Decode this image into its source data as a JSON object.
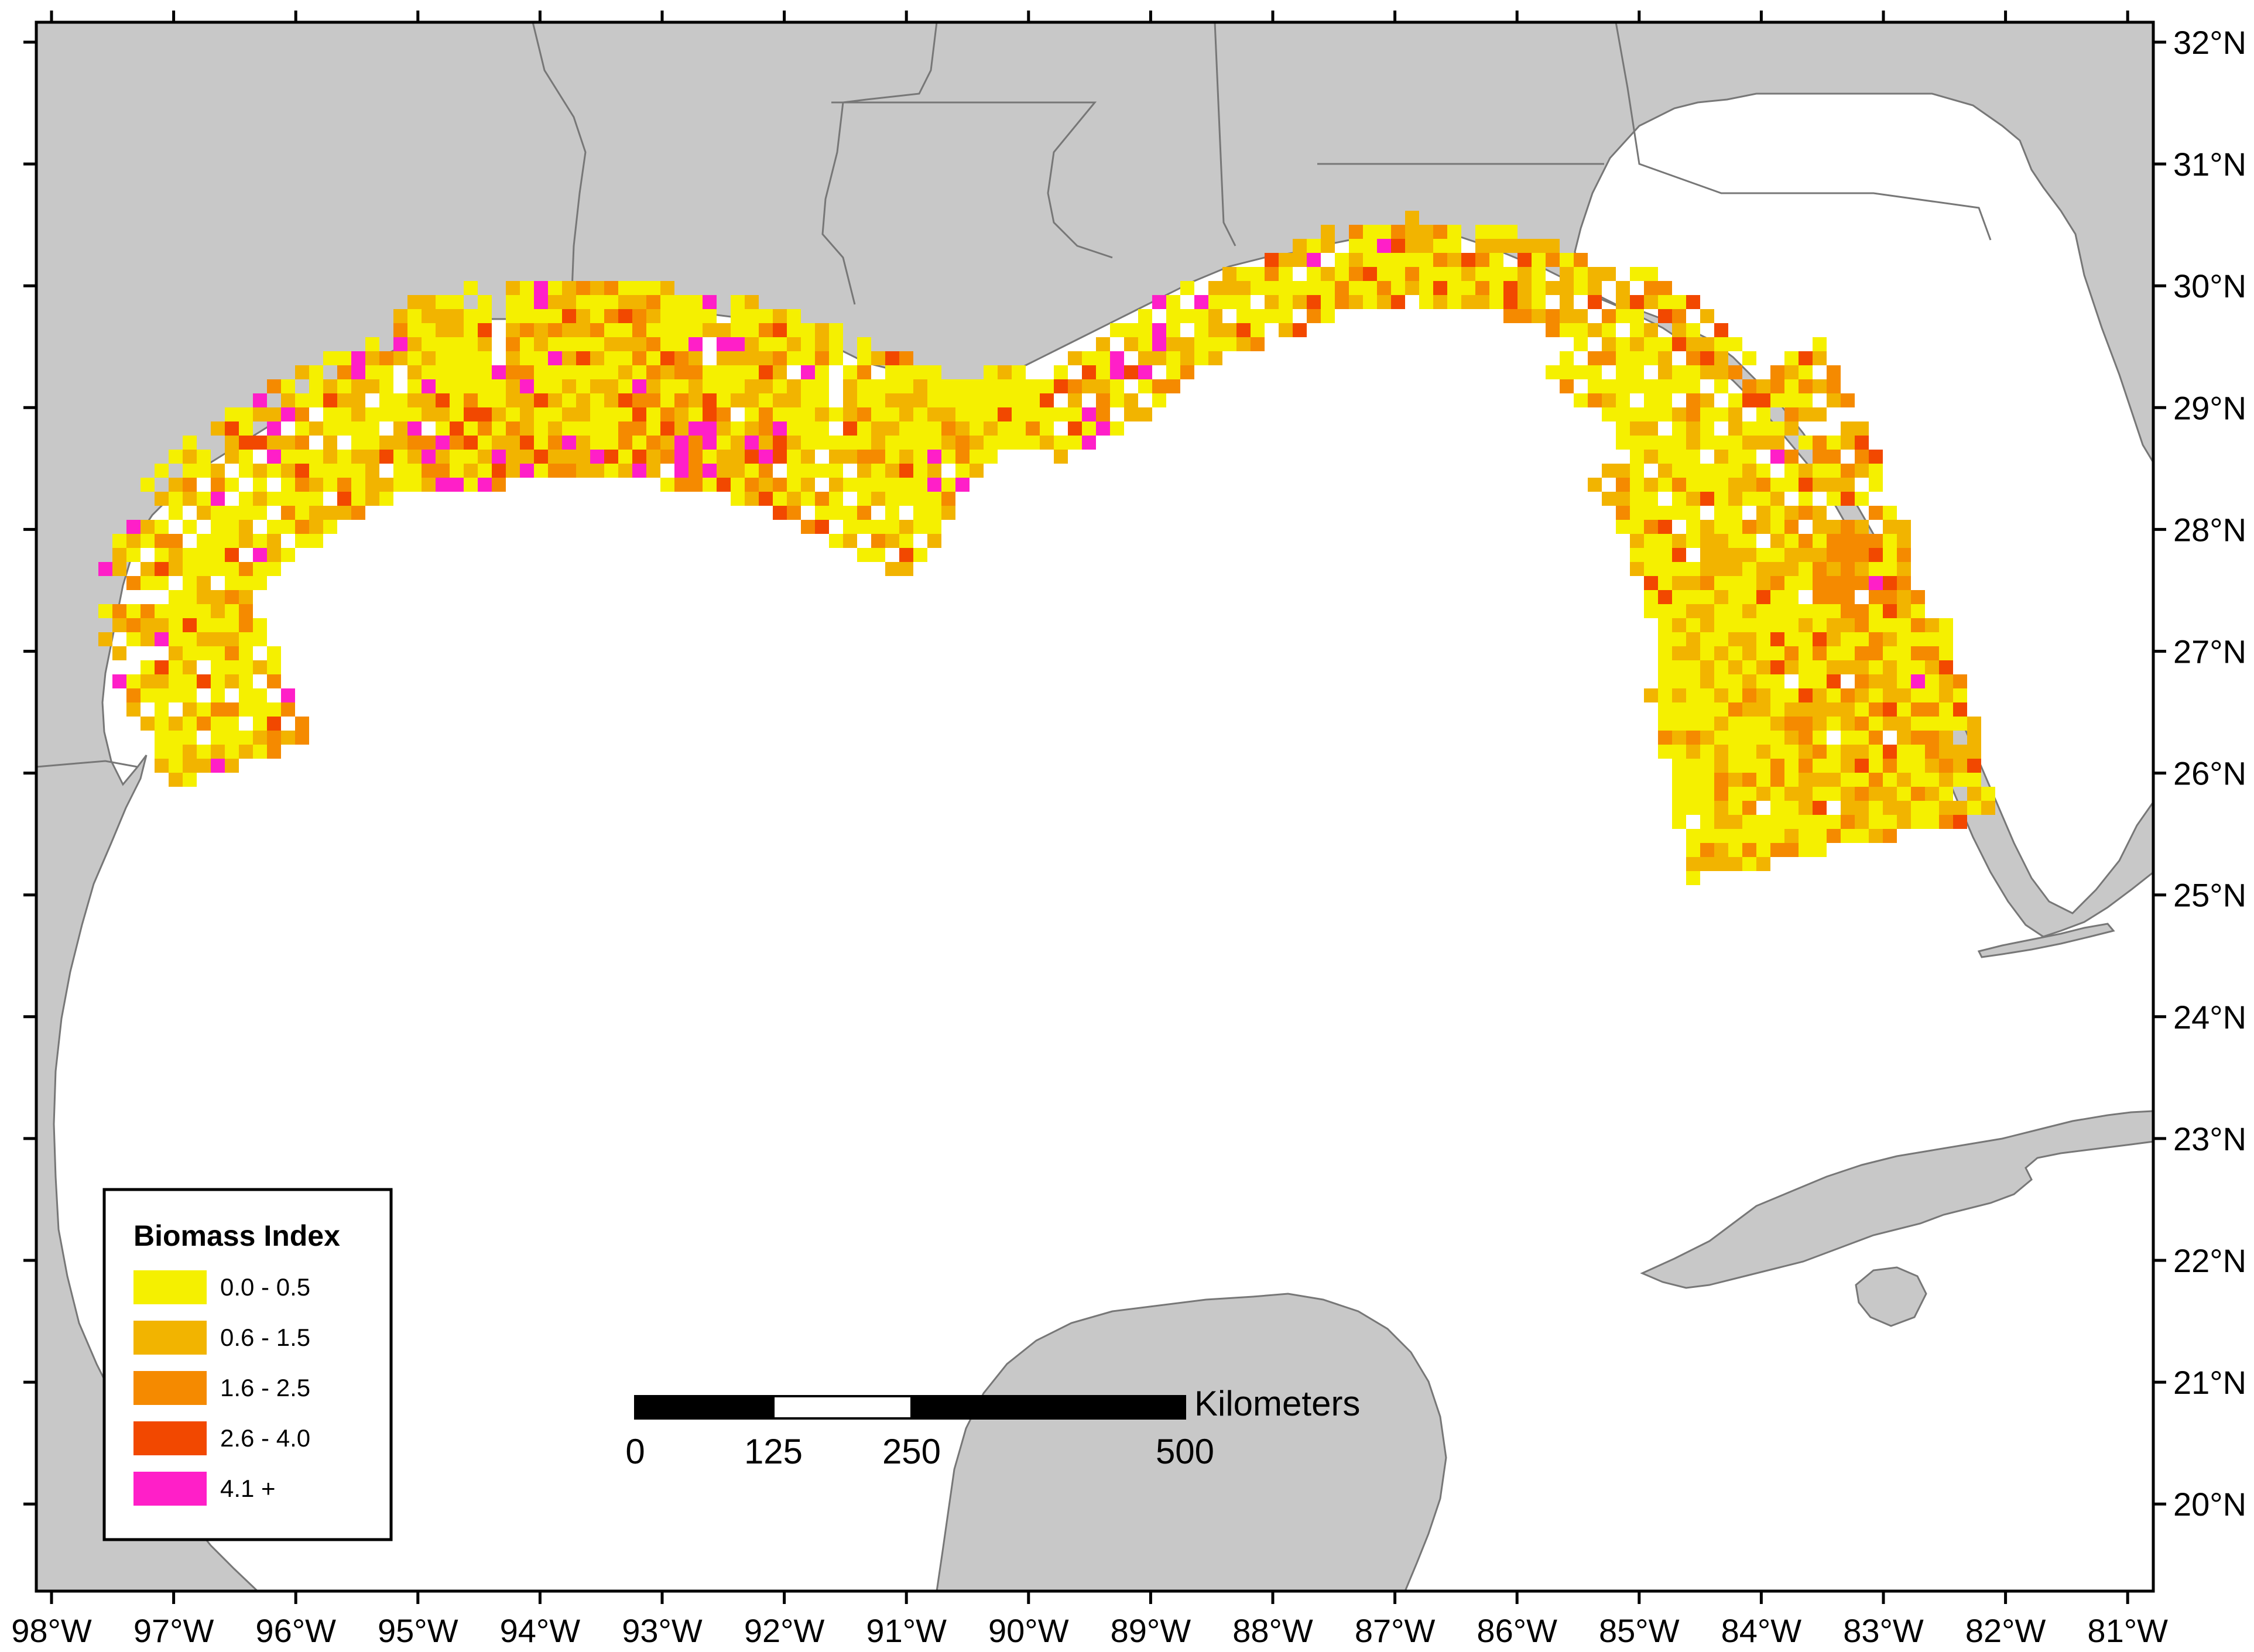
{
  "map": {
    "colors": {
      "land": "#c8c8c8",
      "land_border": "#777777",
      "water": "#ffffff",
      "shelf": "#ffffff",
      "frame": "#000000"
    },
    "lon_labels": [
      "98°W",
      "97°W",
      "96°W",
      "95°W",
      "94°W",
      "93°W",
      "92°W",
      "91°W",
      "90°W",
      "89°W",
      "88°W",
      "87°W",
      "86°W",
      "85°W",
      "84°W",
      "83°W",
      "82°W",
      "81°W"
    ],
    "lat_labels": [
      "32°N",
      "31°N",
      "30°N",
      "29°N",
      "28°N",
      "27°N",
      "26°N",
      "25°N",
      "24°N",
      "23°N",
      "22°N",
      "21°N",
      "20°N"
    ]
  },
  "legend": {
    "title": "Biomass Index",
    "items": [
      {
        "label": "0.0 - 0.5",
        "color": "#f5f000"
      },
      {
        "label": "0.6 - 1.5",
        "color": "#f2b400"
      },
      {
        "label": "1.6 - 2.5",
        "color": "#f58a00"
      },
      {
        "label": "2.6 - 4.0",
        "color": "#f24800"
      },
      {
        "label": "4.1 +",
        "color": "#ff1fc8"
      }
    ]
  },
  "scale_bar": {
    "unit": "Kilometers",
    "labels": [
      "0",
      "125",
      "250",
      "500"
    ]
  }
}
